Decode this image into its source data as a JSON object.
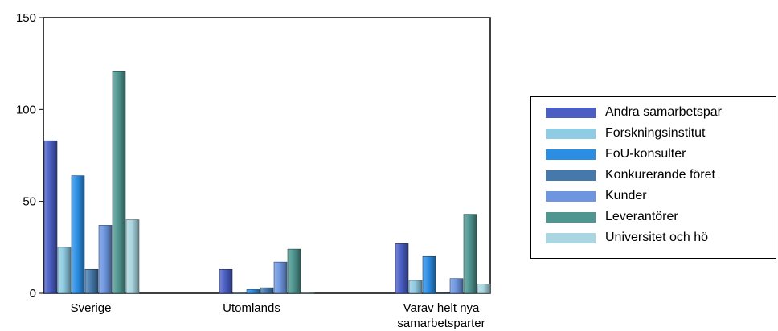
{
  "chart_data": {
    "type": "bar",
    "categories": [
      "Sverige",
      "Utomlands",
      "Varav helt nya samarbetsparter"
    ],
    "category_lines": [
      [
        "Sverige"
      ],
      [
        "Utomlands"
      ],
      [
        "Varav helt nya",
        "samarbetsparter"
      ]
    ],
    "series": [
      {
        "name": "Andra samarbetspar",
        "values": [
          83,
          13,
          27
        ],
        "color": "#4a5ec4"
      },
      {
        "name": "Forskningsinstitut",
        "values": [
          25,
          0,
          7
        ],
        "color": "#8fcbe3"
      },
      {
        "name": "FoU-konsulter",
        "values": [
          64,
          2,
          20
        ],
        "color": "#2b8ee3"
      },
      {
        "name": "Konkurerande föret",
        "values": [
          13,
          3,
          0
        ],
        "color": "#4579ab"
      },
      {
        "name": "Kunder",
        "values": [
          37,
          17,
          8
        ],
        "color": "#6e96e0"
      },
      {
        "name": "Leverantörer",
        "values": [
          121,
          24,
          43
        ],
        "color": "#4f9690"
      },
      {
        "name": "Universitet och hö",
        "values": [
          40,
          0,
          5
        ],
        "color": "#a9d6e0"
      }
    ],
    "y_ticks": [
      "0",
      "50",
      "100",
      "150"
    ],
    "ylim": [
      0,
      150
    ],
    "grid": false,
    "legend_position": "right"
  }
}
